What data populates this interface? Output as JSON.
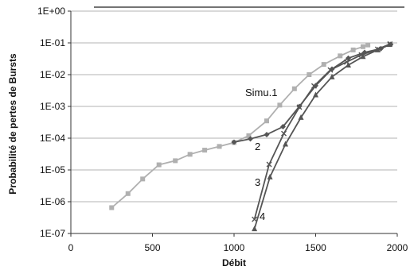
{
  "chart_data": {
    "type": "line",
    "title": "",
    "xlabel": "Débit",
    "ylabel": "Probabilité de pertes de Bursts",
    "y_scale": "log",
    "xlim": [
      0,
      2000
    ],
    "ylim": [
      1e-07,
      1
    ],
    "grid": "horizontal",
    "x_ticks": [
      0,
      500,
      1000,
      1500,
      2000
    ],
    "x_tick_labels": [
      "0",
      "500",
      "1000",
      "1500",
      "2000"
    ],
    "y_ticks": [
      1e-07,
      1e-06,
      1e-05,
      0.0001,
      0.001,
      0.01,
      0.1,
      1
    ],
    "y_tick_labels": [
      "1E-07",
      "1E-06",
      "1E-05",
      "1E-04",
      "1E-03",
      "1E-02",
      "1E-01",
      "1E+00"
    ],
    "series": [
      {
        "name": "Simu.1",
        "color": "#b0b0b0",
        "marker": "square",
        "x": [
          250,
          350,
          440,
          540,
          640,
          730,
          820,
          910,
          1000,
          1090,
          1200,
          1280,
          1370,
          1460,
          1550,
          1650,
          1730,
          1790,
          1820
        ],
        "y": [
          6.5e-07,
          1.8e-06,
          5.2e-06,
          1.45e-05,
          1.95e-05,
          3.1e-05,
          4.2e-05,
          5.5e-05,
          7.3e-05,
          0.00012,
          0.00035,
          0.0011,
          0.0036,
          0.01,
          0.021,
          0.039,
          0.06,
          0.076,
          0.086
        ]
      },
      {
        "name": "2",
        "color": "#555555",
        "marker": "diamond",
        "x": [
          1000,
          1100,
          1200,
          1300,
          1400,
          1500,
          1600,
          1700,
          1800,
          1900,
          1960
        ],
        "y": [
          7.5e-05,
          9.5e-05,
          0.00013,
          0.00023,
          0.001,
          0.0045,
          0.015,
          0.033,
          0.05,
          0.066,
          0.09
        ]
      },
      {
        "name": "3",
        "color": "#555555",
        "marker": "x",
        "x": [
          1125,
          1215,
          1305,
          1400,
          1490,
          1590,
          1690,
          1780,
          1880,
          1955
        ],
        "y": [
          2.8e-07,
          1.5e-05,
          0.00014,
          0.00095,
          0.0044,
          0.014,
          0.025,
          0.042,
          0.063,
          0.092
        ]
      },
      {
        "name": "4",
        "color": "#555555",
        "marker": "triangle",
        "x": [
          1125,
          1220,
          1315,
          1410,
          1500,
          1600,
          1700,
          1790,
          1880,
          1950
        ],
        "y": [
          1.4e-07,
          6e-06,
          6.5e-05,
          0.00045,
          0.0023,
          0.0085,
          0.02,
          0.037,
          0.06,
          0.089
        ]
      }
    ]
  }
}
